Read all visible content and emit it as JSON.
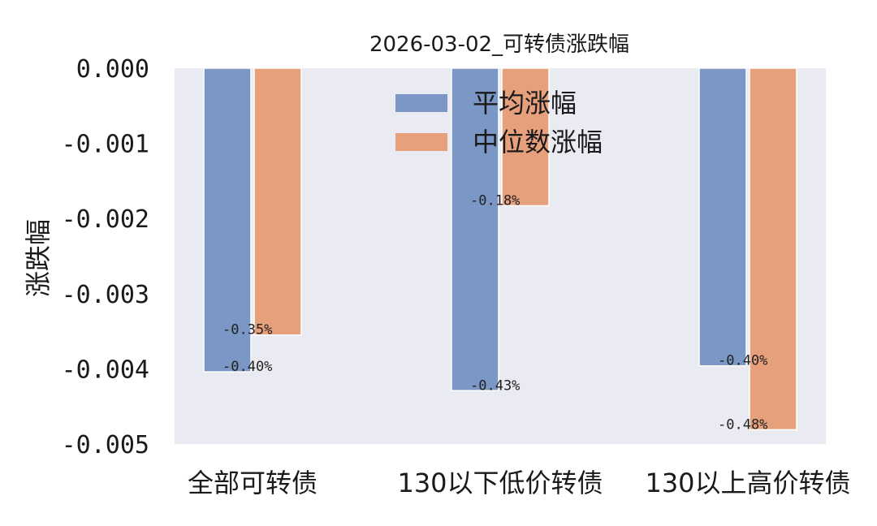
{
  "chart_data": {
    "type": "bar",
    "title": "2026-03-02_可转债涨跌幅",
    "xlabel": "",
    "ylabel": "涨跌幅",
    "categories": [
      "全部可转债",
      "130以下低价转债",
      "130以上高价转债"
    ],
    "series": [
      {
        "name": "平均涨幅",
        "values": [
          -0.00404,
          -0.00429,
          -0.00396
        ],
        "labels": [
          "-0.40%",
          "-0.43%",
          "-0.40%"
        ],
        "color": "#7b97c6"
      },
      {
        "name": "中位数涨幅",
        "values": [
          -0.00355,
          -0.00183,
          -0.00481
        ],
        "labels": [
          "-0.35%",
          "-0.18%",
          "-0.48%"
        ],
        "color": "#e6a07c"
      }
    ],
    "ylim": [
      -0.005,
      0.0
    ],
    "yticks": [
      "0.000",
      "-0.001",
      "-0.002",
      "-0.003",
      "-0.004",
      "-0.005"
    ],
    "ytick_values": [
      0.0,
      -0.001,
      -0.002,
      -0.003,
      -0.004,
      -0.005
    ],
    "grid": false,
    "legend_position": "upper-center",
    "background_color": "#eaeaf2"
  }
}
